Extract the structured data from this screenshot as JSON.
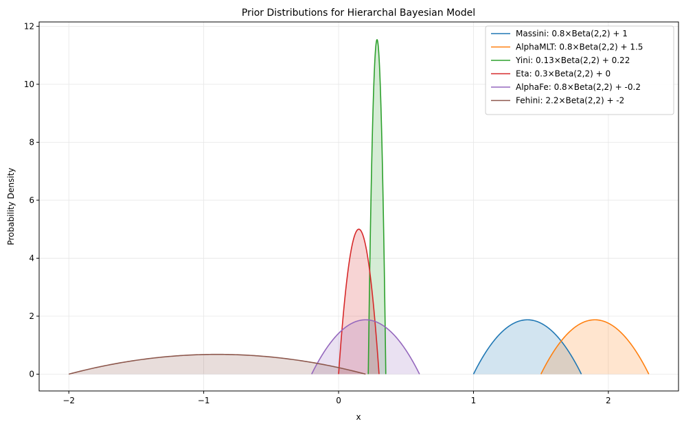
{
  "chart_data": {
    "type": "line",
    "title": "Prior Distributions for Hierarchal Bayesian Model",
    "xlabel": "x",
    "ylabel": "Probability Density",
    "xlim": [
      -2.22,
      2.52
    ],
    "ylim": [
      -0.58,
      12.15
    ],
    "xticks": [
      -2,
      -1,
      0,
      1,
      2
    ],
    "yticks": [
      0,
      2,
      4,
      6,
      8,
      10,
      12
    ],
    "grid": true,
    "legend_position": "top-right",
    "fill_alpha": 0.2,
    "series": [
      {
        "name": "Massini: 0.8×Beta(2,2) + 1",
        "scale": 0.8,
        "loc": 1,
        "color": "#1f77b4"
      },
      {
        "name": "AlphaMLT: 0.8×Beta(2,2) + 1.5",
        "scale": 0.8,
        "loc": 1.5,
        "color": "#ff7f0e"
      },
      {
        "name": "Yini: 0.13×Beta(2,2) + 0.22",
        "scale": 0.13,
        "loc": 0.22,
        "color": "#2ca02c"
      },
      {
        "name": "Eta: 0.3×Beta(2,2) + 0",
        "scale": 0.3,
        "loc": 0,
        "color": "#d62728"
      },
      {
        "name": "AlphaFe: 0.8×Beta(2,2) + -0.2",
        "scale": 0.8,
        "loc": -0.2,
        "color": "#9467bd"
      },
      {
        "name": "Fehini: 2.2×Beta(2,2) + -2",
        "scale": 2.2,
        "loc": -2,
        "color": "#8c564b"
      }
    ]
  }
}
